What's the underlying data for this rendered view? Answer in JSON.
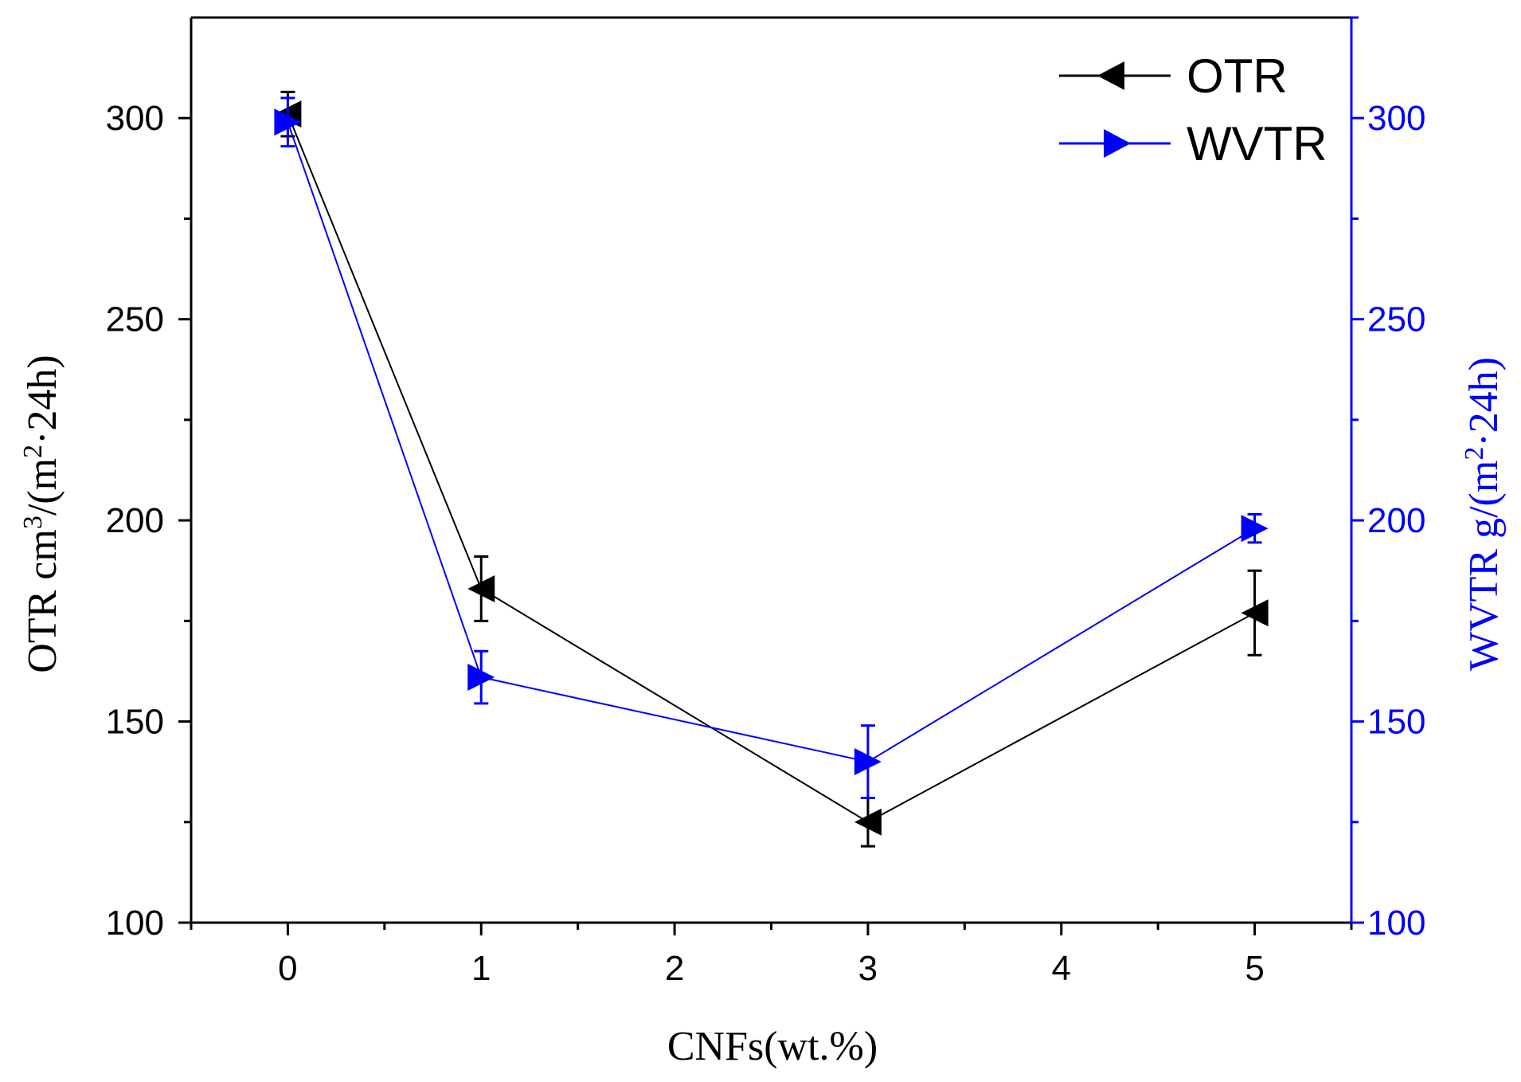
{
  "chart_data": {
    "type": "line",
    "xlabel": "CNFs(wt.%)",
    "ylabel_left_prefix": "OTR cm",
    "ylabel_left_sup1": "3",
    "ylabel_left_mid": "/(m",
    "ylabel_left_sup2": "2",
    "ylabel_left_suffix": "·24h)",
    "ylabel_right_prefix": "WVTR g/(m",
    "ylabel_right_sup": "2",
    "ylabel_right_suffix": "·24h)",
    "xlim": [
      -0.5,
      5.5
    ],
    "ylim": [
      100,
      325
    ],
    "ylim_right": [
      100,
      325
    ],
    "x_ticks": [
      0,
      1,
      2,
      3,
      4,
      5
    ],
    "x_tick_labels": [
      "0",
      "1",
      "2",
      "3",
      "4",
      "5"
    ],
    "y_ticks": [
      100,
      150,
      200,
      250,
      300
    ],
    "y_tick_labels": [
      "100",
      "150",
      "200",
      "250",
      "300"
    ],
    "y_ticks_right": [
      100,
      150,
      200,
      250,
      300
    ],
    "y_tick_labels_right": [
      "100",
      "150",
      "200",
      "250",
      "300"
    ],
    "legend_position": "top-right",
    "series": [
      {
        "name": "OTR",
        "axis": "left",
        "color": "#000000",
        "marker": "triangle-left",
        "x": [
          0,
          1,
          3,
          5
        ],
        "y": [
          301,
          183,
          125,
          177
        ],
        "error": [
          5.5,
          8,
          6,
          10.5
        ]
      },
      {
        "name": "WVTR",
        "axis": "right",
        "color": "#0000ff",
        "marker": "triangle-right",
        "x": [
          0,
          1,
          3,
          5
        ],
        "y": [
          299,
          161,
          140,
          198
        ],
        "error": [
          6,
          6.5,
          9,
          3.5
        ]
      }
    ]
  }
}
